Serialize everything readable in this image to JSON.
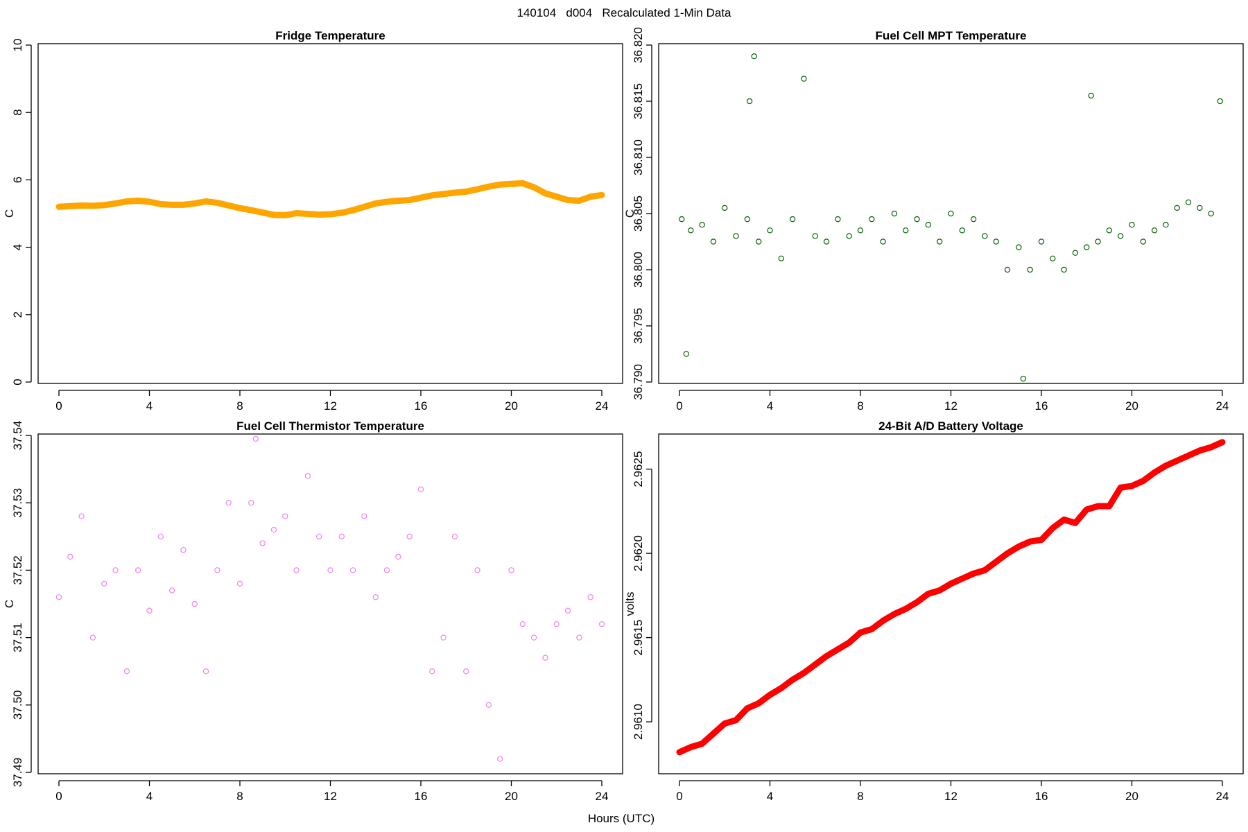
{
  "page": {
    "title": "140104   d004   Recalculated 1-Min Data",
    "common_xlabel": "Hours (UTC)"
  },
  "chart_data": [
    {
      "type": "line",
      "panel": "top-left",
      "title": "Fridge Temperature",
      "xlabel": "",
      "ylabel": "C",
      "xlim": [
        0,
        24
      ],
      "ylim": [
        0,
        10
      ],
      "xticks": [
        0,
        4,
        8,
        12,
        16,
        20,
        24
      ],
      "yticks": [
        0,
        2,
        4,
        6,
        8,
        10
      ],
      "ytick_labels": [
        "0",
        "2",
        "4",
        "6",
        "8",
        "10"
      ],
      "color": "#FFA500",
      "series": [
        {
          "name": "Fridge Temperature",
          "x": [
            0,
            0.5,
            1,
            1.5,
            2,
            2.5,
            3,
            3.5,
            4,
            4.5,
            5,
            5.5,
            6,
            6.5,
            7,
            7.5,
            8,
            8.5,
            9,
            9.5,
            10,
            10.5,
            11,
            11.5,
            12,
            12.5,
            13,
            13.5,
            14,
            14.5,
            15,
            15.5,
            16,
            16.5,
            17,
            17.5,
            18,
            18.5,
            19,
            19.5,
            20,
            20.5,
            21,
            21.5,
            22,
            22.5,
            23,
            23.5,
            24
          ],
          "values": [
            5.2,
            5.22,
            5.24,
            5.23,
            5.25,
            5.3,
            5.36,
            5.38,
            5.35,
            5.28,
            5.26,
            5.26,
            5.3,
            5.36,
            5.32,
            5.24,
            5.16,
            5.1,
            5.03,
            4.96,
            4.95,
            5.01,
            4.99,
            4.97,
            4.98,
            5.02,
            5.1,
            5.2,
            5.3,
            5.35,
            5.38,
            5.4,
            5.47,
            5.54,
            5.58,
            5.62,
            5.65,
            5.72,
            5.8,
            5.86,
            5.88,
            5.9,
            5.78,
            5.6,
            5.5,
            5.4,
            5.38,
            5.5,
            5.55
          ]
        }
      ]
    },
    {
      "type": "scatter",
      "panel": "top-right",
      "title": "Fuel Cell MPT Temperature",
      "xlabel": "",
      "ylabel": "C",
      "xlim": [
        0,
        24
      ],
      "ylim": [
        36.79,
        36.82
      ],
      "xticks": [
        0,
        4,
        8,
        12,
        16,
        20,
        24
      ],
      "yticks": [
        36.79,
        36.795,
        36.8,
        36.805,
        36.81,
        36.815,
        36.82
      ],
      "ytick_labels": [
        "36.790",
        "36.795",
        "36.800",
        "36.805",
        "36.810",
        "36.815",
        "36.820"
      ],
      "color": "#006400",
      "series": [
        {
          "name": "Fuel Cell MPT Temperature",
          "x": [
            0.1,
            0.3,
            0.5,
            1,
            1.5,
            2,
            2.5,
            3,
            3.1,
            3.3,
            3.5,
            4,
            4.5,
            5,
            5.5,
            6,
            6.5,
            7,
            7.5,
            8,
            8.5,
            9,
            9.5,
            10,
            10.5,
            11,
            11.5,
            12,
            12.5,
            13,
            13.5,
            14,
            14.5,
            15,
            15.2,
            15.5,
            16,
            16.5,
            17,
            17.5,
            18,
            18.2,
            18.5,
            19,
            19.5,
            20,
            20.5,
            21,
            21.5,
            22,
            22.5,
            23,
            23.5,
            23.9
          ],
          "values": [
            36.8045,
            36.7925,
            36.8035,
            36.804,
            36.8025,
            36.8055,
            36.803,
            36.8045,
            36.815,
            36.819,
            36.8025,
            36.8035,
            36.801,
            36.8045,
            36.817,
            36.803,
            36.8025,
            36.8045,
            36.803,
            36.8035,
            36.8045,
            36.8025,
            36.805,
            36.8035,
            36.8045,
            36.804,
            36.8025,
            36.805,
            36.8035,
            36.8045,
            36.803,
            36.8025,
            36.8,
            36.802,
            36.7903,
            36.8,
            36.8025,
            36.801,
            36.8,
            36.8015,
            36.802,
            36.8155,
            36.8025,
            36.8035,
            36.803,
            36.804,
            36.8025,
            36.8035,
            36.804,
            36.8055,
            36.806,
            36.8055,
            36.805,
            36.815
          ]
        }
      ]
    },
    {
      "type": "scatter",
      "panel": "bottom-left",
      "title": "Fuel Cell Thermistor Temperature",
      "xlabel": "",
      "ylabel": "C",
      "xlim": [
        0,
        24
      ],
      "ylim": [
        37.49,
        37.54
      ],
      "xticks": [
        0,
        4,
        8,
        12,
        16,
        20,
        24
      ],
      "yticks": [
        37.49,
        37.5,
        37.51,
        37.52,
        37.53,
        37.54
      ],
      "ytick_labels": [
        "37.49",
        "37.50",
        "37.51",
        "37.52",
        "37.53",
        "37.54"
      ],
      "color": "#EE82EE",
      "series": [
        {
          "name": "Fuel Cell Thermistor Temperature",
          "x": [
            0,
            0.5,
            1,
            1.5,
            2,
            2.5,
            3,
            3.5,
            4,
            4.5,
            5,
            5.5,
            6,
            6.5,
            7,
            7.5,
            8,
            8.5,
            8.7,
            9,
            9.5,
            10,
            10.5,
            11,
            11.5,
            12,
            12.5,
            13,
            13.5,
            14,
            14.5,
            15,
            15.5,
            16,
            16.5,
            17,
            17.5,
            18,
            18.5,
            19,
            19.5,
            20,
            20.5,
            21,
            21.5,
            22,
            22.5,
            23,
            23.5,
            24
          ],
          "values": [
            37.516,
            37.522,
            37.528,
            37.51,
            37.518,
            37.52,
            37.505,
            37.52,
            37.514,
            37.525,
            37.517,
            37.523,
            37.515,
            37.505,
            37.52,
            37.53,
            37.518,
            37.53,
            37.5395,
            37.524,
            37.526,
            37.528,
            37.52,
            37.534,
            37.525,
            37.52,
            37.525,
            37.52,
            37.528,
            37.516,
            37.52,
            37.522,
            37.525,
            37.532,
            37.505,
            37.51,
            37.525,
            37.505,
            37.52,
            37.5,
            37.492,
            37.52,
            37.512,
            37.51,
            37.507,
            37.512,
            37.514,
            37.51,
            37.516,
            37.512
          ]
        }
      ]
    },
    {
      "type": "line",
      "panel": "bottom-right",
      "title": "24-Bit A/D Battery Voltage",
      "xlabel": "",
      "ylabel": "volts",
      "xlim": [
        0,
        24
      ],
      "ylim": [
        2.9607,
        2.9627
      ],
      "xticks": [
        0,
        4,
        8,
        12,
        16,
        20,
        24
      ],
      "yticks": [
        2.961,
        2.9615,
        2.962,
        2.9625
      ],
      "ytick_labels": [
        "2.9610",
        "2.9615",
        "2.9620",
        "2.9625"
      ],
      "color": "#FF0000",
      "series": [
        {
          "name": "24-Bit A/D Battery Voltage",
          "x": [
            0,
            0.5,
            1,
            1.5,
            2,
            2.5,
            3,
            3.5,
            4,
            4.5,
            5,
            5.5,
            6,
            6.5,
            7,
            7.5,
            8,
            8.5,
            9,
            9.5,
            10,
            10.5,
            11,
            11.5,
            12,
            12.5,
            13,
            13.5,
            14,
            14.5,
            15,
            15.5,
            16,
            16.5,
            17,
            17.5,
            18,
            18.5,
            19,
            19.5,
            20,
            20.5,
            21,
            21.5,
            22,
            22.5,
            23,
            23.5,
            24
          ],
          "values": [
            2.96082,
            2.96085,
            2.96087,
            2.96093,
            2.96099,
            2.96101,
            2.96108,
            2.96111,
            2.96116,
            2.9612,
            2.96125,
            2.96129,
            2.96134,
            2.96139,
            2.96143,
            2.96147,
            2.96153,
            2.96155,
            2.9616,
            2.96164,
            2.96167,
            2.96171,
            2.96176,
            2.96178,
            2.96182,
            2.96185,
            2.96188,
            2.9619,
            2.96195,
            2.962,
            2.96204,
            2.96207,
            2.96208,
            2.96215,
            2.9622,
            2.96218,
            2.96226,
            2.96228,
            2.96228,
            2.96239,
            2.9624,
            2.96243,
            2.96248,
            2.96252,
            2.96255,
            2.96258,
            2.96261,
            2.96263,
            2.96266
          ]
        }
      ]
    }
  ]
}
